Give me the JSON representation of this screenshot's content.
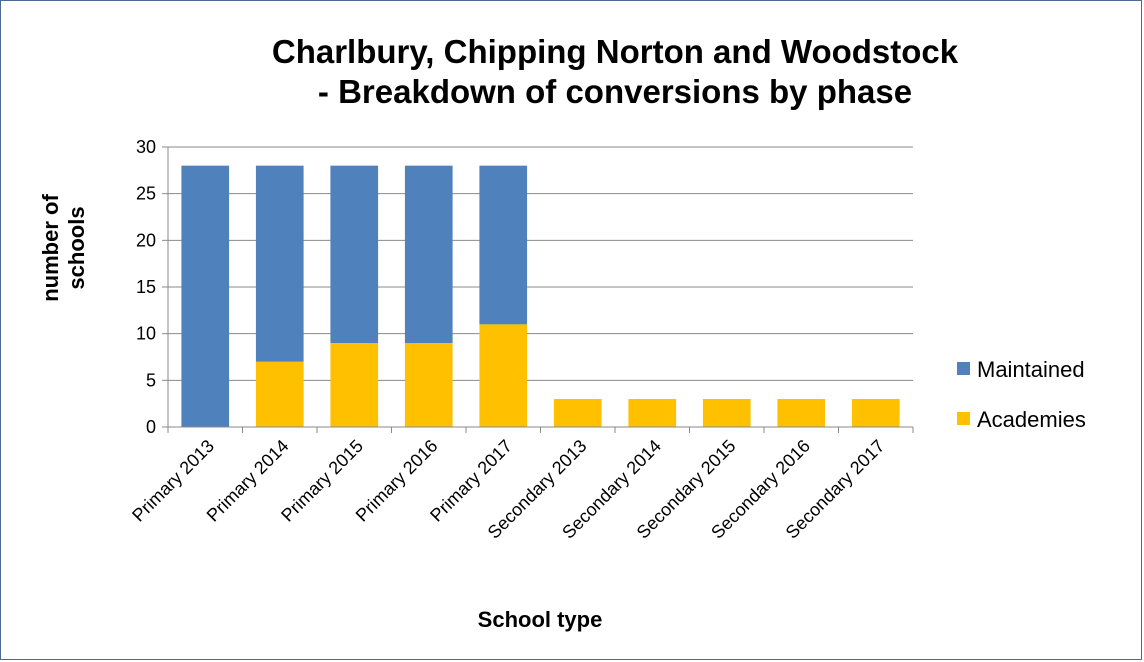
{
  "chart_data": {
    "type": "bar",
    "stacked": true,
    "title_line1": "Charlbury, Chipping Norton and Woodstock",
    "title_line2": "- Breakdown of conversions by phase",
    "categories": [
      "Primary 2013",
      "Primary 2014",
      "Primary 2015",
      "Primary 2016",
      "Primary 2017",
      "Secondary 2013",
      "Secondary 2014",
      "Secondary 2015",
      "Secondary  2016",
      "Secondary 2017"
    ],
    "series": [
      {
        "name": "Academies",
        "color": "#ffc000",
        "values": [
          0,
          7,
          9,
          9,
          11,
          3,
          3,
          3,
          3,
          3
        ]
      },
      {
        "name": "Maintained",
        "color": "#4f81bd",
        "values": [
          28,
          21,
          19,
          19,
          17,
          0,
          0,
          0,
          0,
          0
        ]
      }
    ],
    "legend_order": [
      "Maintained",
      "Academies"
    ],
    "xlabel": "School type",
    "ylabel_line1": "number of",
    "ylabel_line2": "schools",
    "ylim": [
      0,
      30
    ],
    "yticks": [
      0,
      5,
      10,
      15,
      20,
      25,
      30
    ],
    "grid": true,
    "legend_position": "right"
  }
}
